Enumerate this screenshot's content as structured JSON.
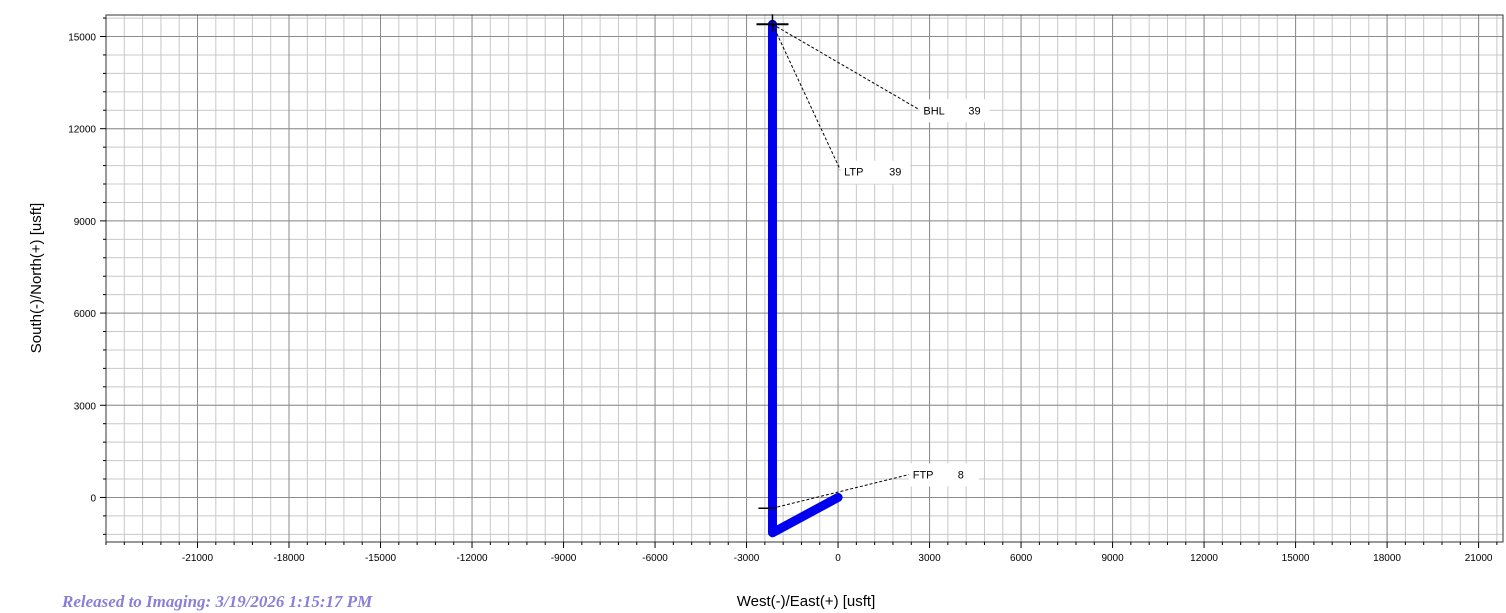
{
  "chart_data": {
    "type": "line",
    "xlabel": "West(-)/East(+)  [usft]",
    "ylabel": "South(-)/North(+)  [usft]",
    "xlim": [
      -24000,
      21800
    ],
    "ylim": [
      -1450,
      15700
    ],
    "x_ticks": [
      -21000,
      -18000,
      -15000,
      -12000,
      -9000,
      -6000,
      -3000,
      0,
      3000,
      6000,
      9000,
      12000,
      15000,
      18000,
      21000
    ],
    "y_ticks": [
      0,
      3000,
      6000,
      9000,
      12000,
      15000
    ],
    "grid": true,
    "series": [
      {
        "color": "#0000ee",
        "points": [
          [
            0,
            0
          ],
          [
            -2150,
            -1150
          ],
          [
            -2150,
            12200
          ],
          [
            -2150,
            15400
          ]
        ]
      }
    ],
    "annotations": [
      {
        "name": "BHL",
        "value": "39",
        "target": [
          -2150,
          15400
        ],
        "label_at": [
          2700,
          12600
        ]
      },
      {
        "name": "LTP",
        "value": "39",
        "target": [
          -2150,
          15400
        ],
        "label_at": [
          100,
          10600
        ]
      },
      {
        "name": "FTP",
        "value": "8",
        "target": [
          -2150,
          -350
        ],
        "label_at": [
          2350,
          750
        ]
      }
    ]
  },
  "footer": {
    "released_text": "Released to Imaging: 3/19/2026 1:15:17 PM"
  }
}
